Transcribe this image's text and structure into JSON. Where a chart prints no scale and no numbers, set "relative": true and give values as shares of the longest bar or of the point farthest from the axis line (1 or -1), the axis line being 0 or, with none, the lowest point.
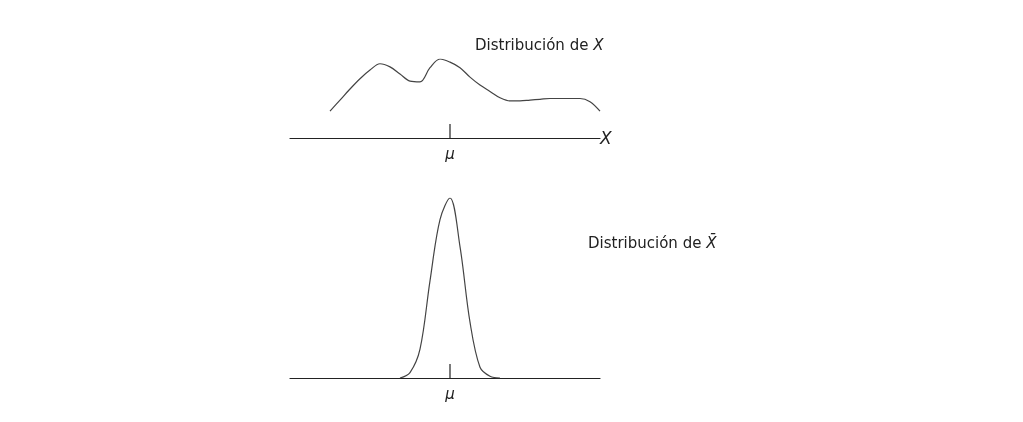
{
  "chart_data": [
    {
      "type": "line",
      "title": "Distribución de X",
      "xlabel": "X",
      "relative": true,
      "grid": false,
      "annotations": [
        "μ"
      ],
      "categories": [
        null,
        null,
        null,
        null,
        null,
        null,
        null,
        null,
        null,
        null,
        null,
        null,
        null,
        null,
        null,
        null,
        null,
        null,
        null,
        null,
        null,
        null,
        null,
        null,
        null,
        null,
        null,
        null,
        null,
        null,
        null,
        null
      ],
      "series": [
        {
          "color": "#444444",
          "values": [
            null,
            null,
            null,
            null,
            0.34,
            0.48,
            0.62,
            0.75,
            0.86,
            0.94,
            0.9,
            0.81,
            0.72,
            0.71,
            0.89,
            1,
            0.96,
            0.89,
            0.77,
            0.67,
            0.59,
            0.51,
            0.47,
            0.47,
            0.48,
            0.49,
            0.5,
            0.5,
            0.5,
            0.5,
            0.46,
            0.34
          ]
        }
      ]
    },
    {
      "type": "line",
      "title": "Distribución de X̄",
      "relative": true,
      "grid": false,
      "annotations": [
        "μ"
      ],
      "categories": [
        null,
        null,
        null,
        null,
        null,
        null,
        null,
        null,
        null,
        null,
        null,
        null,
        null,
        null,
        null,
        null,
        null,
        null,
        null,
        null,
        null,
        null,
        null,
        null,
        null,
        null,
        null,
        null,
        null,
        null,
        null,
        null
      ],
      "series": [
        {
          "color": "#444444",
          "values": [
            null,
            null,
            null,
            null,
            null,
            null,
            null,
            null,
            null,
            null,
            null,
            0,
            0.03,
            0.16,
            0.54,
            0.88,
            1,
            0.73,
            0.31,
            0.06,
            0.01,
            0,
            null,
            null,
            null,
            null,
            null,
            null,
            null,
            null,
            null,
            null
          ]
        }
      ]
    }
  ]
}
